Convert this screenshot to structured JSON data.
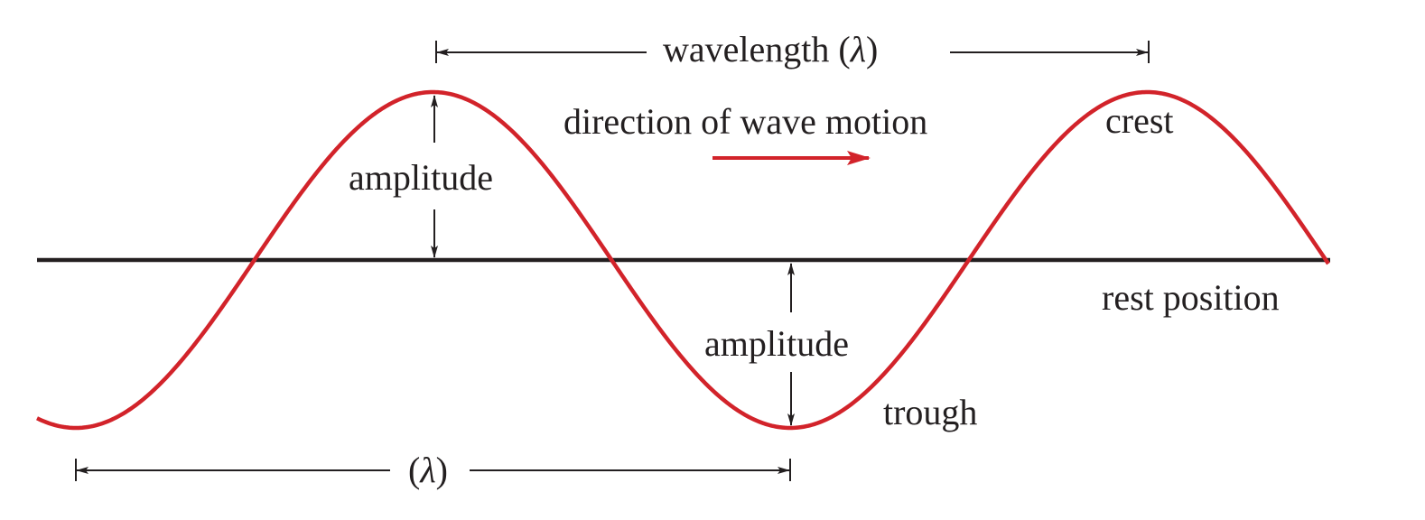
{
  "labels": {
    "wavelength": "wavelength (",
    "wavelength_close": ")",
    "lambda": "λ",
    "lambda_short_open": "(",
    "lambda_short_close": ")",
    "direction": "direction of wave motion",
    "crest": "crest",
    "amplitude_upper": "amplitude",
    "amplitude_lower": "amplitude",
    "rest_position": "rest position",
    "trough": "trough"
  },
  "colors": {
    "wave": "#d2232a",
    "ink": "#231f20",
    "background": "#ffffff"
  }
}
